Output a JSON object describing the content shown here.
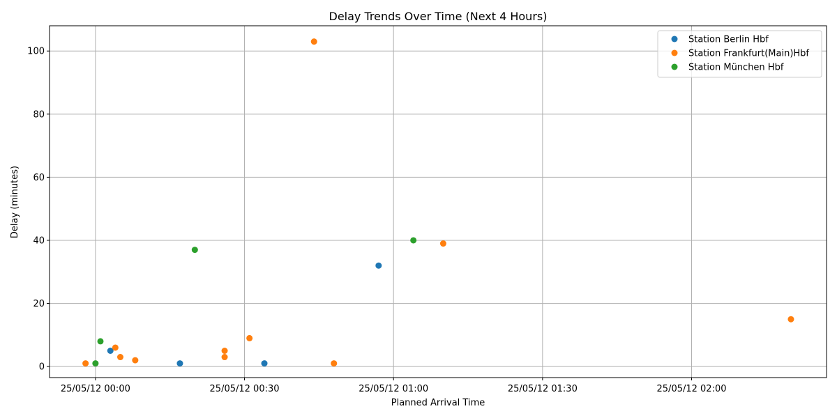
{
  "chart_data": {
    "type": "scatter",
    "title": "Delay Trends Over Time (Next 4 Hours)",
    "xlabel": "Planned Arrival Time",
    "ylabel": "Delay (minutes)",
    "x_unit": "datetime",
    "xlim": [
      "2012-05-24T23:50:45",
      "2012-05-25T02:27:10"
    ],
    "ylim": [
      -3.5,
      108
    ],
    "x_ticks": [
      {
        "value": "2012-05-25T00:00:00",
        "label": "25/05/12 00:00"
      },
      {
        "value": "2012-05-25T00:30:00",
        "label": "25/05/12 00:30"
      },
      {
        "value": "2012-05-25T01:00:00",
        "label": "25/05/12 01:00"
      },
      {
        "value": "2012-05-25T01:30:00",
        "label": "25/05/12 01:30"
      },
      {
        "value": "2012-05-25T02:00:00",
        "label": "25/05/12 02:00"
      }
    ],
    "y_ticks": [
      0,
      20,
      40,
      60,
      80,
      100
    ],
    "grid": true,
    "legend_position": "top-right",
    "series": [
      {
        "name": "Station Berlin Hbf",
        "color": "#1f77b4",
        "points": [
          {
            "x": "2012-05-25T00:03:00",
            "y": 5
          },
          {
            "x": "2012-05-25T00:17:00",
            "y": 1
          },
          {
            "x": "2012-05-25T00:34:00",
            "y": 1
          },
          {
            "x": "2012-05-25T00:57:00",
            "y": 32
          }
        ]
      },
      {
        "name": "Station Frankfurt(Main)Hbf",
        "color": "#ff7f0e",
        "points": [
          {
            "x": "2012-05-24T23:58:00",
            "y": 1
          },
          {
            "x": "2012-05-25T00:04:00",
            "y": 6
          },
          {
            "x": "2012-05-25T00:05:00",
            "y": 3
          },
          {
            "x": "2012-05-25T00:08:00",
            "y": 2
          },
          {
            "x": "2012-05-25T00:26:00",
            "y": 5
          },
          {
            "x": "2012-05-25T00:26:00",
            "y": 3
          },
          {
            "x": "2012-05-25T00:31:00",
            "y": 9
          },
          {
            "x": "2012-05-25T00:44:00",
            "y": 103
          },
          {
            "x": "2012-05-25T00:48:00",
            "y": 1
          },
          {
            "x": "2012-05-25T01:10:00",
            "y": 39
          },
          {
            "x": "2012-05-25T02:20:00",
            "y": 15
          }
        ]
      },
      {
        "name": "Station München Hbf",
        "color": "#2ca02c",
        "points": [
          {
            "x": "2012-05-25T00:00:00",
            "y": 1
          },
          {
            "x": "2012-05-25T00:01:00",
            "y": 8
          },
          {
            "x": "2012-05-25T00:20:00",
            "y": 37
          },
          {
            "x": "2012-05-25T01:04:00",
            "y": 40
          }
        ]
      }
    ]
  }
}
